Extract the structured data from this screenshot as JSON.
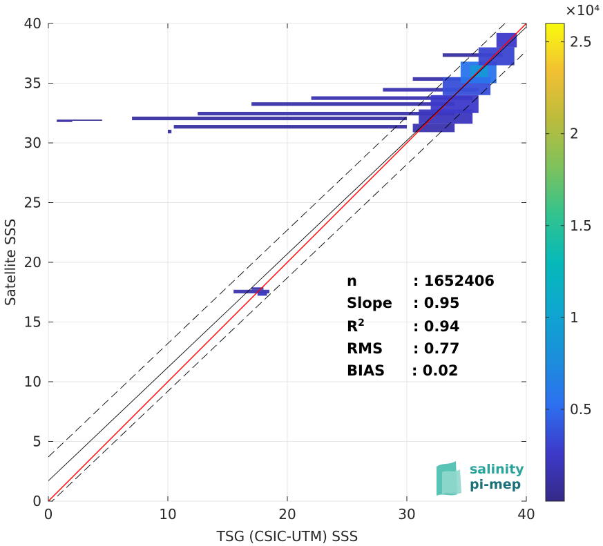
{
  "chart_data": {
    "type": "heatmap",
    "xlabel": "TSG (CSIC-UTM) SSS",
    "ylabel": "Satellite SSS",
    "xlim": [
      0,
      40
    ],
    "ylim": [
      0,
      40
    ],
    "xticks": [
      "0",
      "10",
      "20",
      "30",
      "40"
    ],
    "yticks": [
      "0",
      "5",
      "10",
      "15",
      "20",
      "25",
      "30",
      "35",
      "40"
    ],
    "grid": true,
    "colorbar": {
      "min": 0,
      "max": 26000,
      "multiplier": "×10⁴",
      "ticks": [
        "0.5",
        "1",
        "1.5",
        "2",
        "2.5"
      ],
      "tick_values": [
        5000,
        10000,
        15000,
        20000,
        25000
      ],
      "colormap": "parula"
    },
    "lines": [
      {
        "name": "identity",
        "color": "#ff0000",
        "style": "solid",
        "slope": 1,
        "intercept": 0
      },
      {
        "name": "fit",
        "color": "#000000",
        "style": "solid",
        "slope": 0.95,
        "intercept": 1.7
      },
      {
        "name": "fit-upper",
        "color": "#000000",
        "style": "dashed",
        "slope": 0.95,
        "intercept": 3.7
      },
      {
        "name": "fit-lower",
        "color": "#000000",
        "style": "dashed",
        "slope": 0.95,
        "intercept": -0.3
      }
    ],
    "stats": [
      {
        "label": "n",
        "value": ": 1652406"
      },
      {
        "label": "Slope",
        "value": ": 0.95"
      },
      {
        "label": "R",
        "sup": "2",
        "value": ": 0.94"
      },
      {
        "label": "RMS",
        "value": ": 0.77"
      },
      {
        "label": "BIAS",
        "value": ": 0.02"
      }
    ],
    "density_bands": [
      {
        "x0": 0.7,
        "x1": 2.0,
        "y0": 31.75,
        "y1": 31.95,
        "level": 0.04
      },
      {
        "x0": 2.0,
        "x1": 4.5,
        "y0": 31.85,
        "y1": 31.95,
        "level": 0.02
      },
      {
        "x0": 7.0,
        "x1": 30.0,
        "y0": 31.9,
        "y1": 32.2,
        "level": 0.04
      },
      {
        "x0": 10.5,
        "x1": 30.0,
        "y0": 31.2,
        "y1": 31.5,
        "level": 0.04
      },
      {
        "x0": 10.0,
        "x1": 10.3,
        "y0": 30.8,
        "y1": 31.1,
        "level": 0.03
      },
      {
        "x0": 12.5,
        "x1": 34.0,
        "y0": 32.3,
        "y1": 32.6,
        "level": 0.05
      },
      {
        "x0": 17.0,
        "x1": 34.0,
        "y0": 33.1,
        "y1": 33.4,
        "level": 0.05
      },
      {
        "x0": 22.0,
        "x1": 35.5,
        "y0": 33.6,
        "y1": 33.9,
        "level": 0.06
      },
      {
        "x0": 28.0,
        "x1": 36.0,
        "y0": 34.3,
        "y1": 34.6,
        "level": 0.06
      },
      {
        "x0": 30.5,
        "x1": 37.0,
        "y0": 35.2,
        "y1": 35.5,
        "level": 0.05
      },
      {
        "x0": 33.0,
        "x1": 38.0,
        "y0": 37.2,
        "y1": 37.5,
        "level": 0.04
      },
      {
        "x0": 30.5,
        "x1": 34.0,
        "y0": 30.9,
        "y1": 31.6,
        "level": 0.06
      },
      {
        "x0": 31.0,
        "x1": 35.5,
        "y0": 31.6,
        "y1": 32.8,
        "level": 0.08
      },
      {
        "x0": 32.0,
        "x1": 36.0,
        "y0": 32.5,
        "y1": 34.0,
        "level": 0.1
      },
      {
        "x0": 33.0,
        "x1": 37.0,
        "y0": 34.0,
        "y1": 35.5,
        "level": 0.14
      },
      {
        "x0": 34.5,
        "x1": 37.5,
        "y0": 35.0,
        "y1": 36.8,
        "level": 0.22
      },
      {
        "x0": 35.3,
        "x1": 36.8,
        "y0": 35.5,
        "y1": 36.5,
        "level": 0.33
      },
      {
        "x0": 36.0,
        "x1": 39.0,
        "y0": 36.5,
        "y1": 38.0,
        "level": 0.12
      },
      {
        "x0": 37.5,
        "x1": 39.2,
        "y0": 38.0,
        "y1": 39.2,
        "level": 0.1
      },
      {
        "x0": 15.5,
        "x1": 18.5,
        "y0": 17.4,
        "y1": 17.7,
        "level": 0.06
      },
      {
        "x0": 17.0,
        "x1": 18.0,
        "y0": 17.7,
        "y1": 17.9,
        "level": 0.05
      },
      {
        "x0": 17.5,
        "x1": 18.3,
        "y0": 17.2,
        "y1": 17.5,
        "level": 0.08
      }
    ]
  },
  "logo": {
    "line1": "salinity",
    "line2": "pi-mep"
  }
}
